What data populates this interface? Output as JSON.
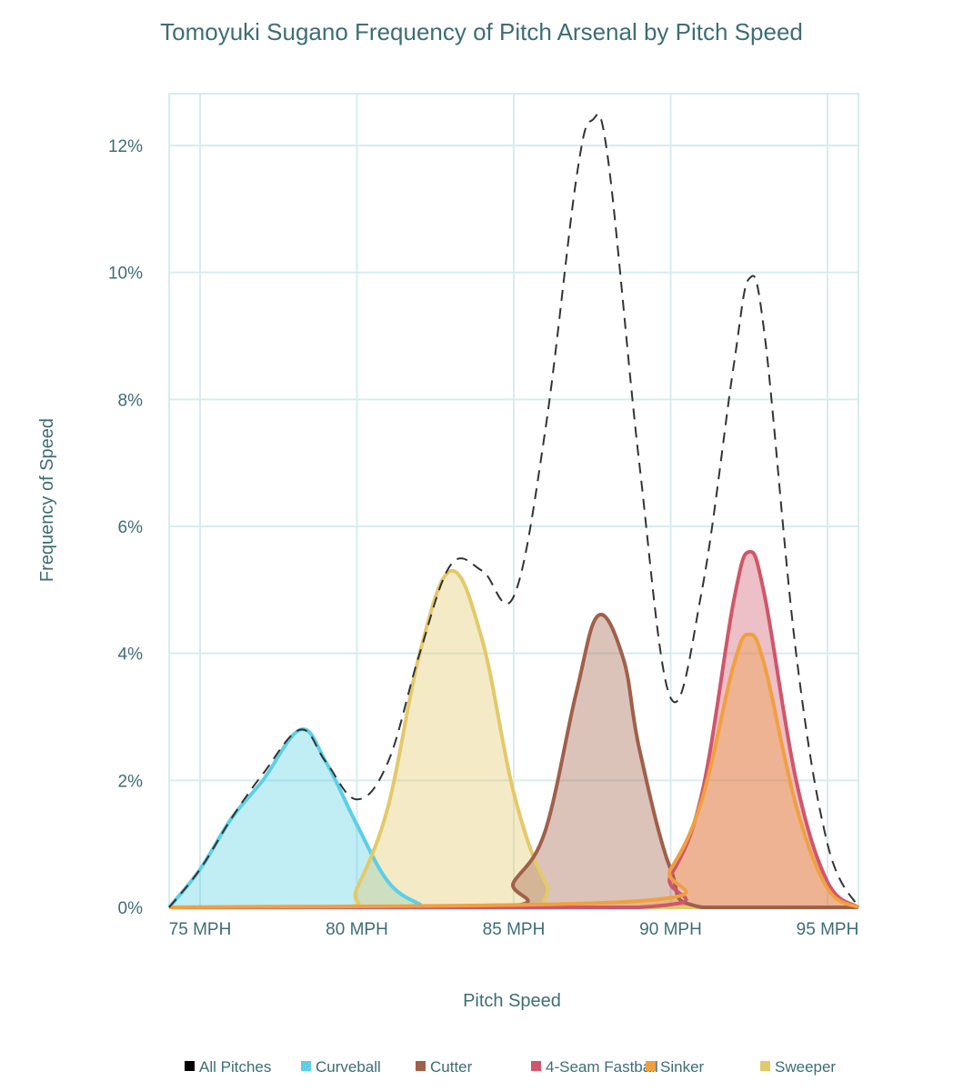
{
  "chart_data": {
    "type": "area",
    "title": "Tomoyuki Sugano Frequency of Pitch Arsenal by Pitch Speed",
    "xlabel": "Pitch Speed",
    "ylabel": "Frequency of Speed",
    "xlim": [
      74,
      96
    ],
    "ylim": [
      0,
      12.8
    ],
    "xticks": [
      75,
      80,
      85,
      90,
      95
    ],
    "xtick_labels": [
      "75 MPH",
      "80 MPH",
      "85 MPH",
      "90 MPH",
      "95 MPH"
    ],
    "yticks": [
      0,
      2,
      4,
      6,
      8,
      10,
      12
    ],
    "ytick_labels": [
      "0%",
      "2%",
      "4%",
      "6%",
      "8%",
      "10%",
      "12%"
    ],
    "grid": true,
    "legend_position": "bottom",
    "series": [
      {
        "name": "All Pitches",
        "color": "#000000",
        "style": "dashed",
        "fill": false,
        "points": [
          [
            74,
            0
          ],
          [
            75,
            0.6
          ],
          [
            76,
            1.4
          ],
          [
            77,
            2.1
          ],
          [
            78.2,
            2.8
          ],
          [
            79,
            2.3
          ],
          [
            80,
            1.7
          ],
          [
            81,
            2.3
          ],
          [
            82,
            4.0
          ],
          [
            83,
            5.4
          ],
          [
            84,
            5.3
          ],
          [
            85,
            4.9
          ],
          [
            86,
            7.5
          ],
          [
            87,
            11.5
          ],
          [
            87.5,
            12.4
          ],
          [
            88,
            11.8
          ],
          [
            89,
            7.0
          ],
          [
            90,
            3.3
          ],
          [
            91,
            5.0
          ],
          [
            92,
            8.5
          ],
          [
            92.5,
            9.9
          ],
          [
            93,
            9.0
          ],
          [
            94,
            4.0
          ],
          [
            95,
            1.0
          ],
          [
            96,
            0
          ]
        ]
      },
      {
        "name": "Curveball",
        "color": "#5ccfe6",
        "fill": true,
        "points": [
          [
            74,
            0
          ],
          [
            75,
            0.6
          ],
          [
            76,
            1.4
          ],
          [
            77,
            2.0
          ],
          [
            78.2,
            2.8
          ],
          [
            79,
            2.3
          ],
          [
            80,
            1.3
          ],
          [
            81,
            0.4
          ],
          [
            82,
            0.05
          ],
          [
            82.5,
            0
          ],
          [
            96,
            0
          ]
        ]
      },
      {
        "name": "Cutter",
        "color": "#a0604a",
        "fill": true,
        "points": [
          [
            74,
            0
          ],
          [
            84.5,
            0
          ],
          [
            85,
            0.4
          ],
          [
            86,
            1.2
          ],
          [
            87,
            3.4
          ],
          [
            87.7,
            4.6
          ],
          [
            88.5,
            3.9
          ],
          [
            89,
            2.5
          ],
          [
            90,
            0.6
          ],
          [
            91,
            0
          ],
          [
            96,
            0
          ]
        ]
      },
      {
        "name": "4-Seam Fastball",
        "color": "#d0566b",
        "fill": true,
        "points": [
          [
            74,
            0
          ],
          [
            89,
            0
          ],
          [
            90,
            0.5
          ],
          [
            91,
            1.8
          ],
          [
            92,
            4.8
          ],
          [
            92.5,
            5.6
          ],
          [
            93,
            4.9
          ],
          [
            94,
            2.0
          ],
          [
            95,
            0.4
          ],
          [
            96,
            0
          ]
        ]
      },
      {
        "name": "Sinker",
        "color": "#f0a040",
        "fill": true,
        "points": [
          [
            74,
            0
          ],
          [
            89,
            0.1
          ],
          [
            90,
            0.6
          ],
          [
            91,
            1.7
          ],
          [
            92,
            3.8
          ],
          [
            92.5,
            4.3
          ],
          [
            93,
            3.8
          ],
          [
            94,
            1.6
          ],
          [
            95,
            0.3
          ],
          [
            96,
            0
          ]
        ]
      },
      {
        "name": "Sweeper",
        "color": "#e3c96a",
        "fill": true,
        "points": [
          [
            74,
            0
          ],
          [
            79.5,
            0
          ],
          [
            80,
            0.3
          ],
          [
            81,
            1.6
          ],
          [
            82,
            4.0
          ],
          [
            83,
            5.3
          ],
          [
            84,
            4.2
          ],
          [
            85,
            1.8
          ],
          [
            86,
            0.4
          ],
          [
            87,
            0
          ],
          [
            96,
            0
          ]
        ]
      }
    ]
  }
}
